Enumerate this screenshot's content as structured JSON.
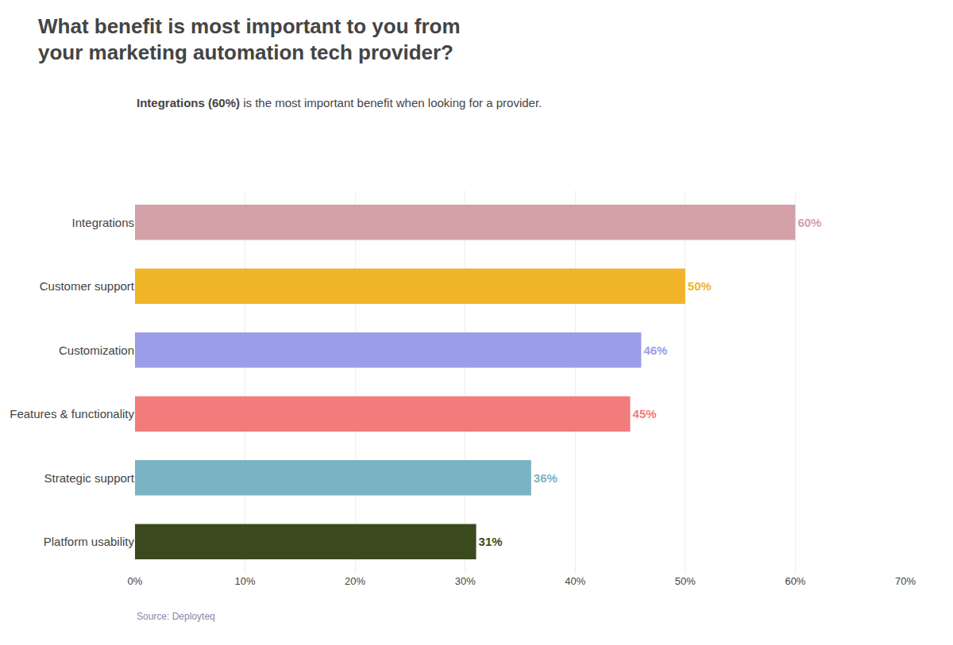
{
  "chart_data": {
    "type": "bar",
    "orientation": "horizontal",
    "title": "What benefit is most important to you from\nyour marketing automation tech provider?",
    "subtitle": [
      "Integrations (60%)",
      " is the most important benefit when looking for a provider."
    ],
    "annotations": [
      "Source: Deployteq"
    ],
    "categories": [
      "Integrations",
      "Customer support",
      "Customization",
      "Features & functionality",
      "Strategic support",
      "Platform usability"
    ],
    "values": [
      60,
      50,
      46,
      45,
      36,
      31
    ],
    "value_labels": [
      "60%",
      "50%",
      "46%",
      "45%",
      "36%",
      "31%"
    ],
    "data_labels": true,
    "colors": [
      "#d4a0a8",
      "#f0b429",
      "#9b9de8",
      "#f27b7b",
      "#7ab3c4",
      "#3a4a1e"
    ],
    "xlim": [
      0,
      70
    ],
    "xticks": [
      {
        "value": 0,
        "label": "0%"
      },
      {
        "value": 10,
        "label": "10%"
      },
      {
        "value": 20,
        "label": "20%"
      },
      {
        "value": 30,
        "label": "30%"
      },
      {
        "value": 40,
        "label": "40%"
      },
      {
        "value": 50,
        "label": "50%"
      },
      {
        "value": 60,
        "label": "60%"
      },
      {
        "value": 70,
        "label": "70%"
      }
    ],
    "grid": true
  }
}
